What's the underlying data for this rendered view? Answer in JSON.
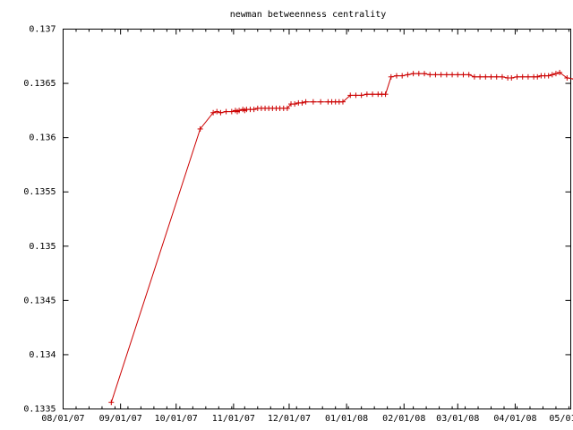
{
  "chart_data": {
    "type": "line",
    "title": "newman betweenness centrality",
    "xlabel": "",
    "ylabel": "",
    "x_ticks": [
      "08/01/07",
      "09/01/07",
      "10/01/07",
      "11/01/07",
      "12/01/07",
      "01/01/08",
      "02/01/08",
      "03/01/08",
      "04/01/08",
      "05/01/08"
    ],
    "y_ticks": [
      "0.1335",
      "0.134",
      "0.1345",
      "0.135",
      "0.1355",
      "0.136",
      "0.1365",
      "0.137"
    ],
    "ylim": [
      0.1335,
      0.137
    ],
    "xlim": [
      "2007-08-01",
      "2008-05-01"
    ],
    "grid": false,
    "series_color": "#cc0000",
    "series": [
      {
        "x": [
          "2007-08-27",
          "2007-10-14",
          "2007-10-21",
          "2007-10-23",
          "2007-10-25",
          "2007-10-28",
          "2007-10-31",
          "2007-11-02",
          "2007-11-03",
          "2007-11-04",
          "2007-11-06",
          "2007-11-07",
          "2007-11-08",
          "2007-11-10",
          "2007-11-12",
          "2007-11-14",
          "2007-11-16",
          "2007-11-18",
          "2007-11-20",
          "2007-11-22",
          "2007-11-24",
          "2007-11-26",
          "2007-11-28",
          "2007-11-30",
          "2007-12-02",
          "2007-12-04",
          "2007-12-06",
          "2007-12-08",
          "2007-12-10",
          "2007-12-14",
          "2007-12-18",
          "2007-12-22",
          "2007-12-24",
          "2007-12-26",
          "2007-12-28",
          "2007-12-30",
          "2008-01-03",
          "2008-01-06",
          "2008-01-09",
          "2008-01-12",
          "2008-01-15",
          "2008-01-18",
          "2008-01-20",
          "2008-01-22",
          "2008-01-25",
          "2008-01-28",
          "2008-01-31",
          "2008-02-03",
          "2008-02-06",
          "2008-02-09",
          "2008-02-12",
          "2008-02-15",
          "2008-02-18",
          "2008-02-21",
          "2008-02-24",
          "2008-02-27",
          "2008-03-01",
          "2008-03-04",
          "2008-03-07",
          "2008-03-10",
          "2008-03-13",
          "2008-03-16",
          "2008-03-19",
          "2008-03-22",
          "2008-03-25",
          "2008-03-28",
          "2008-03-30",
          "2008-04-02",
          "2008-04-05",
          "2008-04-08",
          "2008-04-11",
          "2008-04-13",
          "2008-04-15",
          "2008-04-17",
          "2008-04-19",
          "2008-04-21",
          "2008-04-23",
          "2008-04-25",
          "2008-04-29",
          "2008-05-03",
          "2008-05-07",
          "2008-05-11",
          "2008-05-13"
        ],
        "y": [
          0.13356,
          0.13608,
          0.13623,
          0.13624,
          0.13623,
          0.13624,
          0.13624,
          0.13625,
          0.13624,
          0.13625,
          0.13626,
          0.13625,
          0.13626,
          0.13626,
          0.13626,
          0.13627,
          0.13627,
          0.13627,
          0.13627,
          0.13627,
          0.13627,
          0.13627,
          0.13627,
          0.13627,
          0.13631,
          0.13631,
          0.13632,
          0.13632,
          0.13633,
          0.13633,
          0.13633,
          0.13633,
          0.13633,
          0.13633,
          0.13633,
          0.13633,
          0.13639,
          0.13639,
          0.13639,
          0.1364,
          0.1364,
          0.1364,
          0.1364,
          0.1364,
          0.13656,
          0.13657,
          0.13657,
          0.13658,
          0.13659,
          0.13659,
          0.13659,
          0.13658,
          0.13658,
          0.13658,
          0.13658,
          0.13658,
          0.13658,
          0.13658,
          0.13658,
          0.13656,
          0.13656,
          0.13656,
          0.13656,
          0.13656,
          0.13656,
          0.13655,
          0.13655,
          0.13656,
          0.13656,
          0.13656,
          0.13656,
          0.13656,
          0.13657,
          0.13657,
          0.13657,
          0.13658,
          0.13659,
          0.1366,
          0.13655,
          0.13654,
          0.13654,
          0.13654,
          0.13654
        ]
      }
    ]
  }
}
